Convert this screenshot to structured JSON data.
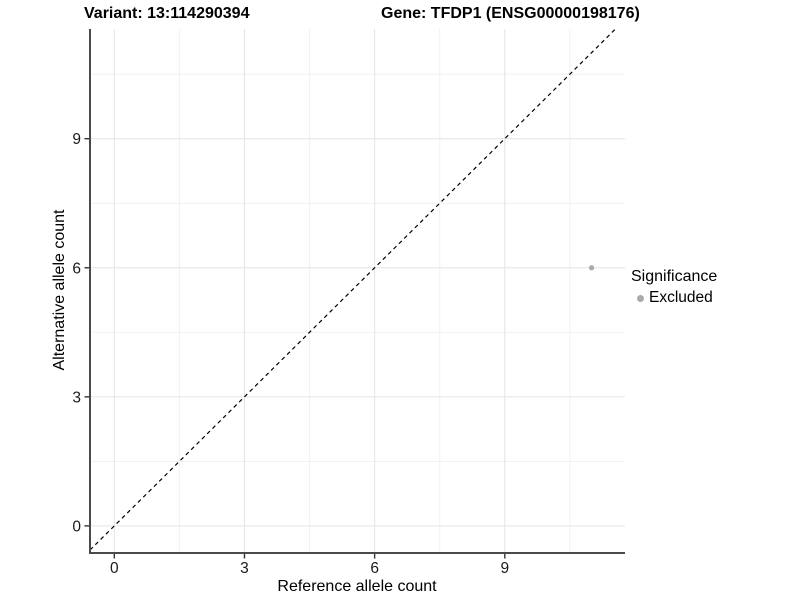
{
  "chart_data": {
    "type": "scatter",
    "title_left": "Variant: 13:114290394",
    "title_right": "Gene: TFDP1 (ENSG00000198176)",
    "xlabel": "Reference allele count",
    "ylabel": "Alternative allele count",
    "xlim": [
      -0.56,
      11.77
    ],
    "ylim": [
      -0.63,
      11.55
    ],
    "x_major_ticks": [
      0,
      3,
      6,
      9
    ],
    "y_major_ticks": [
      0,
      3,
      6,
      9
    ],
    "x_minor_ticks": [
      1.5,
      4.5,
      7.5,
      10.5
    ],
    "y_minor_ticks": [
      1.5,
      4.5,
      7.5,
      10.5
    ],
    "grid": true,
    "series": [
      {
        "name": "Excluded",
        "color": "#a9a9a9",
        "points": [
          {
            "x": 11,
            "y": 6
          }
        ]
      }
    ],
    "reference_line": {
      "slope": 1,
      "intercept": 0,
      "style": "dashed",
      "color": "#000000"
    },
    "legend": {
      "position": "right",
      "title": "Significance",
      "items": [
        {
          "label": "Excluded",
          "color": "#a9a9a9"
        }
      ]
    },
    "style": {
      "background": "#ffffff",
      "grid_major_color": "#e4e4e4",
      "grid_minor_color": "#f1f1f1",
      "axis_line_color": "#4a4a4a",
      "tick_color": "#333333",
      "tick_label_color": "#1a1a1a",
      "point_radius": 2.6
    }
  }
}
